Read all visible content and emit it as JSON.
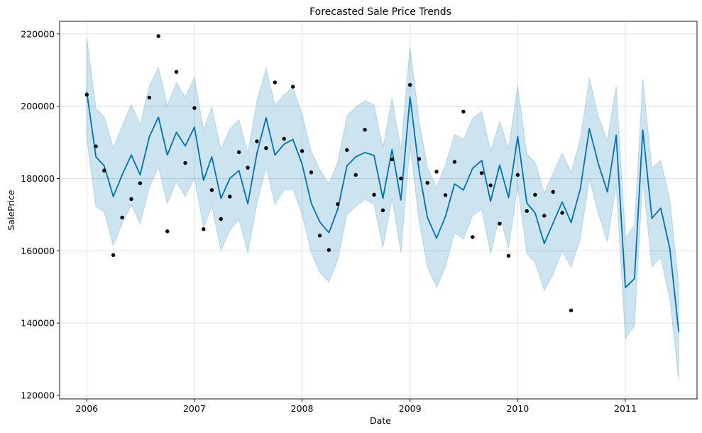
{
  "chart_data": {
    "type": "line",
    "title": "Forecasted Sale Price Trends",
    "xlabel": "Date",
    "ylabel": "SalePrice",
    "x_ticks": [
      "2006",
      "2007",
      "2008",
      "2009",
      "2010",
      "2011"
    ],
    "y_ticks": [
      "120000",
      "140000",
      "160000",
      "180000",
      "200000",
      "220000"
    ],
    "xlim": [
      "2005-10-01",
      "2011-09-01"
    ],
    "ylim": [
      119000,
      223500
    ],
    "grid": true,
    "colors": {
      "forecast": "#0072b2",
      "interval": "#0072b2",
      "actual": "#000000"
    },
    "forecast": {
      "dates": [
        "2006-01",
        "2006-02",
        "2006-03",
        "2006-04",
        "2006-05",
        "2006-06",
        "2006-07",
        "2006-08",
        "2006-09",
        "2006-10",
        "2006-11",
        "2006-12",
        "2007-01",
        "2007-02",
        "2007-03",
        "2007-04",
        "2007-05",
        "2007-06",
        "2007-07",
        "2007-08",
        "2007-09",
        "2007-10",
        "2007-11",
        "2007-12",
        "2008-01",
        "2008-02",
        "2008-03",
        "2008-04",
        "2008-05",
        "2008-06",
        "2008-07",
        "2008-08",
        "2008-09",
        "2008-10",
        "2008-11",
        "2008-12",
        "2009-01",
        "2009-02",
        "2009-03",
        "2009-04",
        "2009-05",
        "2009-06",
        "2009-07",
        "2009-08",
        "2009-09",
        "2009-10",
        "2009-11",
        "2009-12",
        "2010-01",
        "2010-02",
        "2010-03",
        "2010-04",
        "2010-05",
        "2010-06",
        "2010-07",
        "2010-08",
        "2010-09",
        "2010-10",
        "2010-11",
        "2010-12",
        "2011-01",
        "2011-02",
        "2011-03",
        "2011-04",
        "2011-05",
        "2011-06",
        "2011-07"
      ],
      "yhat": [
        204000,
        186000,
        183500,
        175000,
        181000,
        186500,
        181000,
        191500,
        197000,
        186500,
        192800,
        189000,
        194200,
        179500,
        186000,
        174500,
        180000,
        182200,
        173000,
        187000,
        196800,
        186500,
        189500,
        190800,
        184000,
        173200,
        168000,
        165000,
        171500,
        183500,
        186000,
        187200,
        186400,
        174500,
        188000,
        174000,
        202600,
        182000,
        169200,
        163500,
        169500,
        178500,
        176800,
        182800,
        185000,
        173700,
        183700,
        174700,
        191600,
        173200,
        170500,
        162000,
        167700,
        173500,
        167800,
        177000,
        193800,
        184200,
        176300,
        192000,
        149800,
        152300,
        193400,
        169000,
        171800,
        160500,
        137500
      ],
      "yhat_upper": [
        219000,
        199500,
        197000,
        188500,
        194500,
        200500,
        195000,
        205500,
        210800,
        200200,
        206500,
        202500,
        208000,
        193500,
        199700,
        188000,
        193700,
        196300,
        187000,
        201500,
        210500,
        200300,
        203200,
        205200,
        197800,
        187500,
        182500,
        178500,
        184500,
        197300,
        199800,
        201500,
        200400,
        188500,
        202300,
        188000,
        216500,
        195900,
        183000,
        177500,
        183700,
        192200,
        190800,
        196600,
        198600,
        187500,
        195800,
        188400,
        205600,
        186800,
        184500,
        176000,
        181500,
        187000,
        181700,
        190800,
        207800,
        197200,
        190500,
        205500,
        163500,
        167000,
        207500,
        182900,
        185000,
        174000,
        150500
      ],
      "yhat_lower": [
        191000,
        172200,
        170800,
        161500,
        167500,
        172700,
        167500,
        177500,
        183200,
        173000,
        179200,
        175000,
        180200,
        166300,
        172300,
        160000,
        165800,
        168600,
        159500,
        173000,
        183200,
        172800,
        176800,
        177000,
        170000,
        159500,
        154000,
        151300,
        157500,
        170000,
        172300,
        174200,
        172800,
        160800,
        174500,
        159500,
        189200,
        168000,
        155500,
        149800,
        155500,
        165000,
        163200,
        169700,
        171500,
        159300,
        169700,
        160700,
        177800,
        159200,
        156800,
        149000,
        153500,
        160000,
        155500,
        163200,
        179800,
        170500,
        162500,
        178300,
        135700,
        139200,
        179800,
        155500,
        158200,
        146500,
        124000
      ]
    },
    "actual": {
      "dates": [
        "2006-01",
        "2006-02",
        "2006-03",
        "2006-04",
        "2006-05",
        "2006-06",
        "2006-07",
        "2006-08",
        "2006-09",
        "2006-10",
        "2006-11",
        "2006-12",
        "2007-01",
        "2007-02",
        "2007-03",
        "2007-04",
        "2007-05",
        "2007-06",
        "2007-07",
        "2007-08",
        "2007-09",
        "2007-10",
        "2007-11",
        "2007-12",
        "2008-01",
        "2008-02",
        "2008-03",
        "2008-04",
        "2008-05",
        "2008-06",
        "2008-07",
        "2008-08",
        "2008-09",
        "2008-10",
        "2008-11",
        "2008-12",
        "2009-01",
        "2009-02",
        "2009-03",
        "2009-04",
        "2009-05",
        "2009-06",
        "2009-07",
        "2009-08",
        "2009-09",
        "2009-10",
        "2009-11",
        "2009-12",
        "2010-01",
        "2010-02",
        "2010-03",
        "2010-04",
        "2010-05",
        "2010-06",
        "2010-07"
      ],
      "values": [
        203200,
        188900,
        182200,
        158800,
        169200,
        174300,
        178700,
        202400,
        219400,
        165400,
        209500,
        184300,
        199500,
        166000,
        176800,
        168800,
        175000,
        187300,
        183000,
        190300,
        188400,
        206600,
        191000,
        205400,
        187600,
        181700,
        164200,
        160200,
        172900,
        187900,
        181000,
        193500,
        175500,
        171200,
        185300,
        180000,
        205900,
        185400,
        178800,
        181900,
        175400,
        184600,
        198500,
        163800,
        181500,
        178100,
        167500,
        158600,
        181000,
        171000,
        175500,
        169700,
        176300,
        170500,
        143500
      ]
    }
  }
}
